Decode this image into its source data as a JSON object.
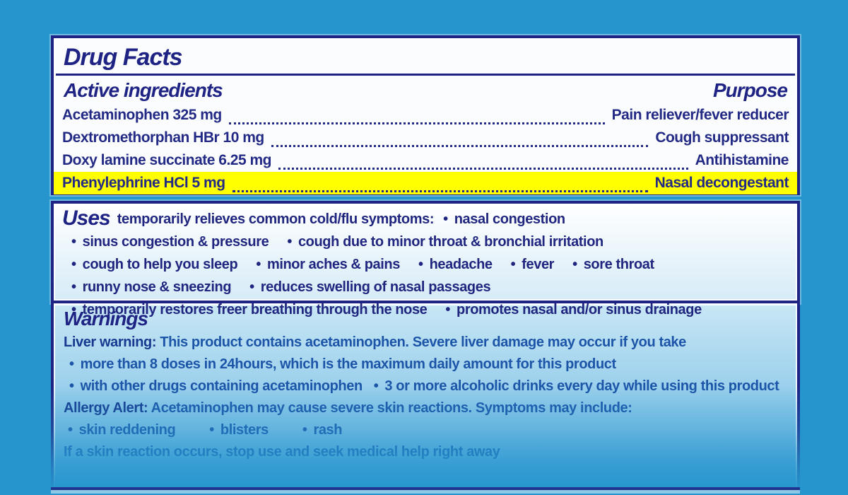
{
  "colors": {
    "background": "#2695ce",
    "navy": "#1e2384",
    "highlight_yellow": "#ffff00",
    "warning_text_blue": "#1c55a8"
  },
  "label": {
    "title": "Drug Facts",
    "active_ingredients": {
      "heading": "Active ingredients",
      "purpose_heading": "Purpose",
      "rows": [
        {
          "ingredient": "Acetaminophen 325 mg",
          "purpose": "Pain reliever/fever reducer",
          "highlighted": false
        },
        {
          "ingredient": "Dextromethorphan HBr 10 mg",
          "purpose": "Cough suppressant",
          "highlighted": false
        },
        {
          "ingredient": "Doxy lamine succinate 6.25 mg",
          "purpose": "Antihistamine",
          "highlighted": false
        },
        {
          "ingredient": "Phenylephrine HCl 5 mg",
          "purpose": "Nasal decongestant",
          "highlighted": true
        }
      ]
    },
    "uses": {
      "heading": "Uses",
      "intro": "temporarily relieves common cold/flu symptoms:",
      "items": [
        "nasal congestion",
        "sinus congestion & pressure",
        "cough due to minor throat & bronchial irritation",
        "cough to help you sleep",
        "minor aches & pains",
        "headache",
        "fever",
        "sore throat",
        "runny nose & sneezing",
        "reduces swelling of nasal passages",
        "temporarily restores freer breathing through the nose",
        "promotes nasal and/or sinus drainage"
      ]
    },
    "warnings": {
      "heading": "Warnings",
      "liver_label": "Liver warning:",
      "liver_intro": "This product contains acetaminophen. Severe liver damage may occur if you take",
      "liver_items": [
        "more than 8 doses in 24hours, which is the maximum daily amount for this product",
        "with other drugs containing acetaminophen",
        "3 or more alcoholic drinks every day while using this product"
      ],
      "allergy_label": "Allergy Alert:",
      "allergy_intro": "Acetaminophen may cause severe skin reactions. Symptoms may include:",
      "allergy_items": [
        "skin reddening",
        "blisters",
        "rash"
      ],
      "skin_reaction_note": "If a skin reaction occurs, stop use and seek medical help right away"
    }
  }
}
